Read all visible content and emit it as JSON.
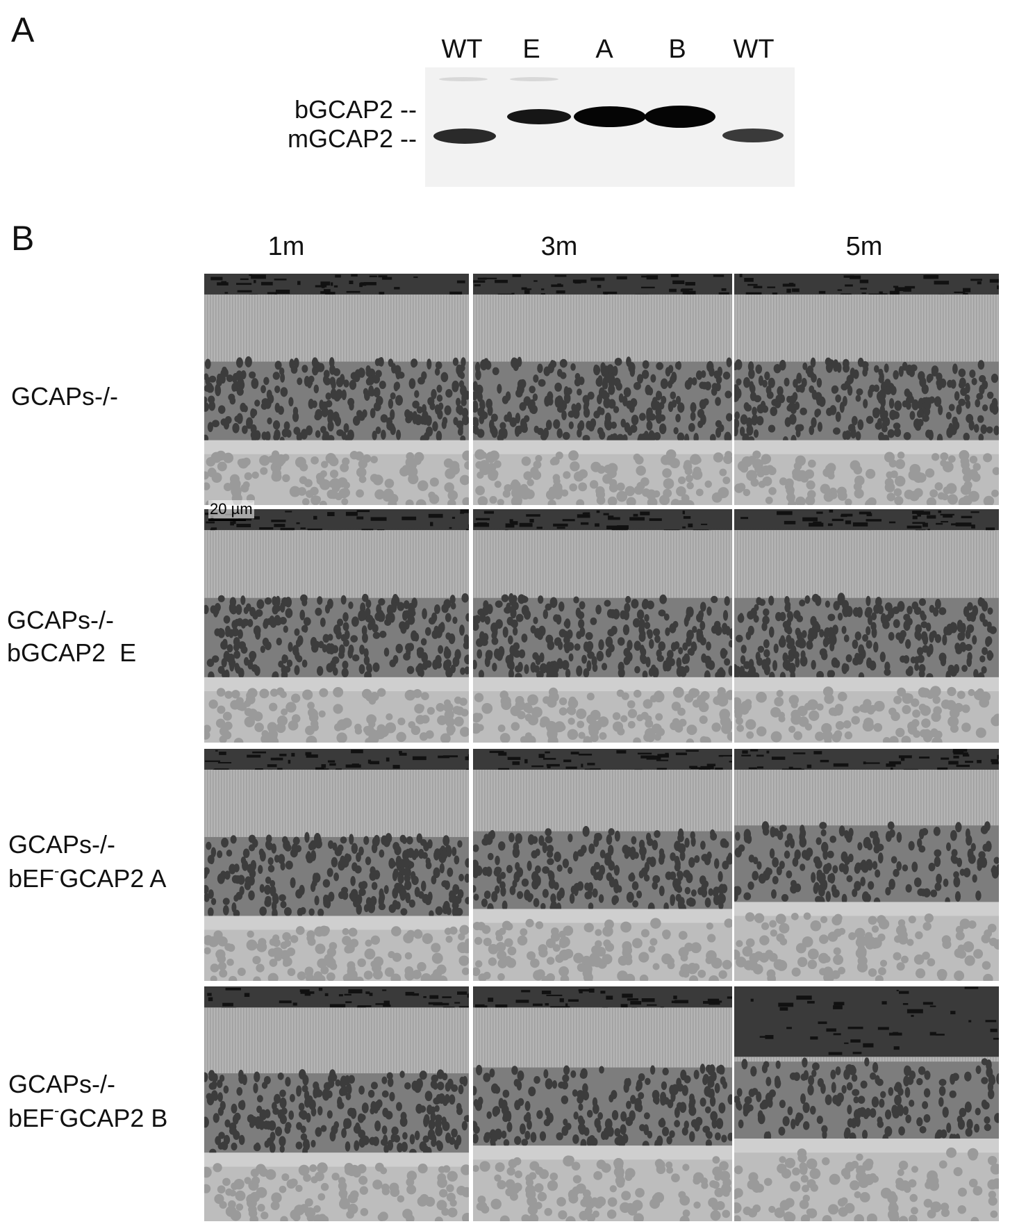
{
  "panel_a": {
    "letter": "A",
    "lanes": [
      "WT",
      "E",
      "A",
      "B",
      "WT"
    ],
    "band_labels": [
      "bGCAP2 --",
      "mGCAP2 --"
    ]
  },
  "panel_b": {
    "letter": "B",
    "ages": [
      "1m",
      "3m",
      "5m"
    ],
    "rows": [
      {
        "line1": "GCAPs-/-",
        "line2": ""
      },
      {
        "line1": "GCAPs-/-",
        "line2": "bGCAP2  E"
      },
      {
        "line1": "GCAPs-/-",
        "line2_pre": "bEF",
        "line2_sup": "-",
        "line2_post": "GCAP2 A"
      },
      {
        "line1": "GCAPs-/-",
        "line2_pre": "bEF",
        "line2_sup": "-",
        "line2_post": "GCAP2 B"
      }
    ],
    "scale_bar_label": "20 µm"
  }
}
